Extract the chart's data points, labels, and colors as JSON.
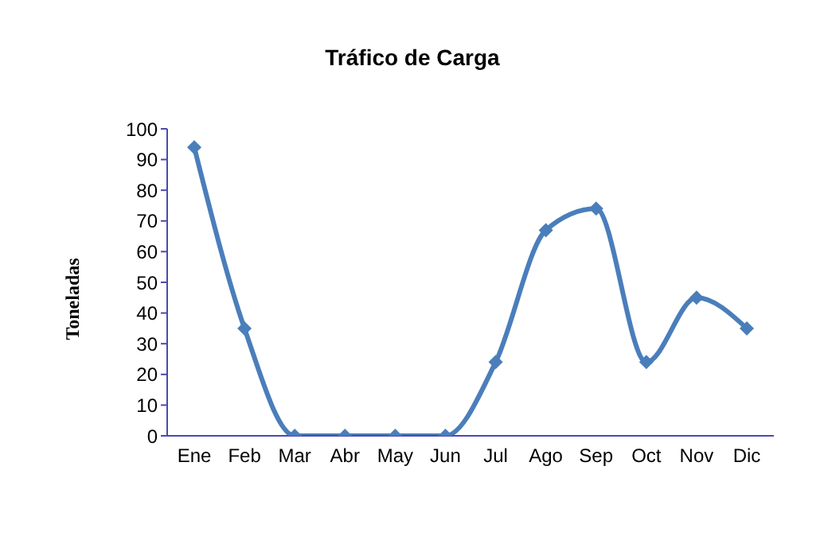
{
  "chart_data": {
    "type": "line",
    "title": "Tráfico de Carga",
    "ylabel": "Toneladas",
    "categories": [
      "Ene",
      "Feb",
      "Mar",
      "Abr",
      "May",
      "Jun",
      "Jul",
      "Ago",
      "Sep",
      "Oct",
      "Nov",
      "Dic"
    ],
    "series": [
      {
        "color": "#4a7ebb",
        "values": [
          94,
          35,
          0,
          0,
          0,
          0,
          24,
          67,
          74,
          24,
          45,
          35
        ]
      }
    ],
    "ylim": [
      0,
      100
    ],
    "yticks": [
      0,
      10,
      20,
      30,
      40,
      50,
      60,
      70,
      80,
      90,
      100
    ],
    "grid": false,
    "legend": false,
    "marker": "diamond",
    "line_style": "solid"
  }
}
